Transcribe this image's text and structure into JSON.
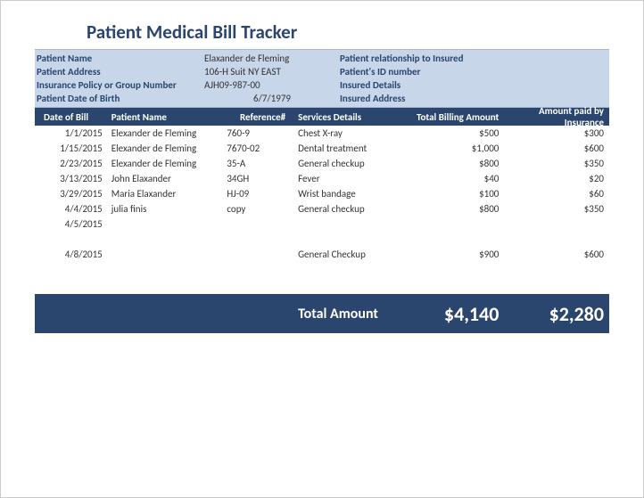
{
  "title": "Patient Medical Bill Tracker",
  "patient_info": {
    "left": [
      {
        "label": "Patient Name",
        "value": "Elaxander de Fleming"
      },
      {
        "label": "Patient Address",
        "value": "106-H Suit NY EAST"
      },
      {
        "label": "Insurance Policy or Group Number",
        "value": "AJH09-987-00"
      },
      {
        "label": "Patient Date of Birth",
        "value": "6/7/1979"
      }
    ],
    "right": [
      {
        "label": "Patient relationship to Insured"
      },
      {
        "label": "Patient's ID number"
      },
      {
        "label": "Insured Details"
      },
      {
        "label": "Insured Address"
      }
    ]
  },
  "columns": {
    "date": "Date of Bill",
    "name": "Patient Name",
    "ref": "Reference#",
    "svc": "Services Details",
    "bill": "Total Billing Amount",
    "paid": "Amount paid by Insurance"
  },
  "rows": [
    {
      "date": "1/1/2015",
      "name": "Elexander de Fleming",
      "ref": "760-9",
      "svc": "Chest X-ray",
      "bill": "$500",
      "paid": "$300"
    },
    {
      "date": "1/15/2015",
      "name": "Elexander de Fleming",
      "ref": "7670-02",
      "svc": "Dental treatment",
      "bill": "$1,000",
      "paid": "$600"
    },
    {
      "date": "2/23/2015",
      "name": "Elexander de Fleming",
      "ref": "35-A",
      "svc": "General checkup",
      "bill": "$800",
      "paid": "$350"
    },
    {
      "date": "3/13/2015",
      "name": "John Elaxander",
      "ref": "34GH",
      "svc": "Fever",
      "bill": "$40",
      "paid": "$20"
    },
    {
      "date": "3/29/2015",
      "name": "Maria Elaxander",
      "ref": "HJ-09",
      "svc": "Wrist bandage",
      "bill": "$100",
      "paid": "$60"
    },
    {
      "date": "4/4/2015",
      "name": "julia finis",
      "ref": "copy",
      "svc": "General checkup",
      "bill": "$800",
      "paid": "$350"
    },
    {
      "date": "4/5/2015",
      "name": "",
      "ref": "",
      "svc": "",
      "bill": "",
      "paid": ""
    }
  ],
  "extra_row": {
    "date": "4/8/2015",
    "name": "",
    "ref": "",
    "svc": "General Checkup",
    "bill": "$900",
    "paid": "$600"
  },
  "totals": {
    "label": "Total Amount",
    "bill": "$4,140",
    "paid": "$2,280"
  },
  "colors": {
    "header_bg": "#2a466e",
    "info_bg": "#c8d6ea",
    "title_color": "#2a466e"
  }
}
